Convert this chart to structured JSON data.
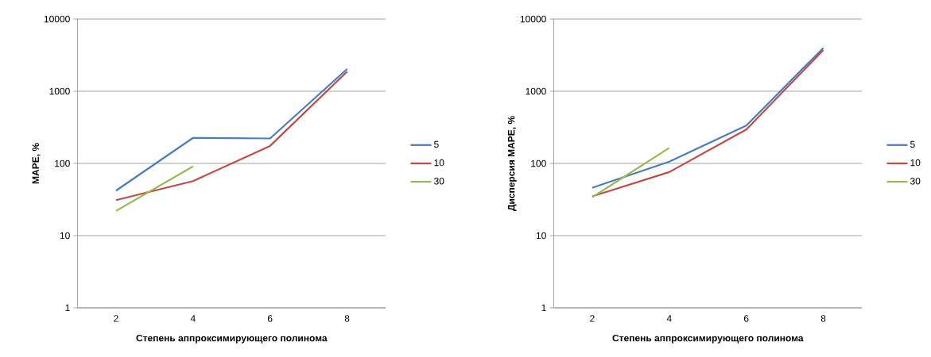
{
  "chart_data": [
    {
      "type": "line",
      "xlabel": "Степень аппроксимирующего  полинома",
      "ylabel": "MAPE, %",
      "categories": [
        "2",
        "4",
        "6",
        "8"
      ],
      "log": "y",
      "ylim": [
        1,
        10000
      ],
      "yticks": [
        1,
        10,
        100,
        1000,
        10000
      ],
      "grid": "y",
      "legend": "right",
      "series": [
        {
          "name": "5",
          "color": "#4a7ebb",
          "values": [
            42,
            226,
            222,
            2030
          ]
        },
        {
          "name": "10",
          "color": "#be4b48",
          "values": [
            31,
            57,
            175,
            1870
          ]
        },
        {
          "name": "30",
          "color": "#98b954",
          "values": [
            22,
            91,
            null,
            null
          ]
        }
      ]
    },
    {
      "type": "line",
      "xlabel": "Степень аппроксимирующего  полинома",
      "ylabel": "Дисперсия MAPE, %",
      "categories": [
        "2",
        "4",
        "6",
        "8"
      ],
      "log": "y",
      "ylim": [
        1,
        10000
      ],
      "yticks": [
        1,
        10,
        100,
        1000,
        10000
      ],
      "grid": "y",
      "legend": "right",
      "series": [
        {
          "name": "5",
          "color": "#4a7ebb",
          "values": [
            46,
            106,
            334,
            3980
          ]
        },
        {
          "name": "10",
          "color": "#be4b48",
          "values": [
            35,
            76,
            295,
            3720
          ]
        },
        {
          "name": "30",
          "color": "#98b954",
          "values": [
            34,
            164,
            null,
            null
          ]
        }
      ]
    }
  ]
}
